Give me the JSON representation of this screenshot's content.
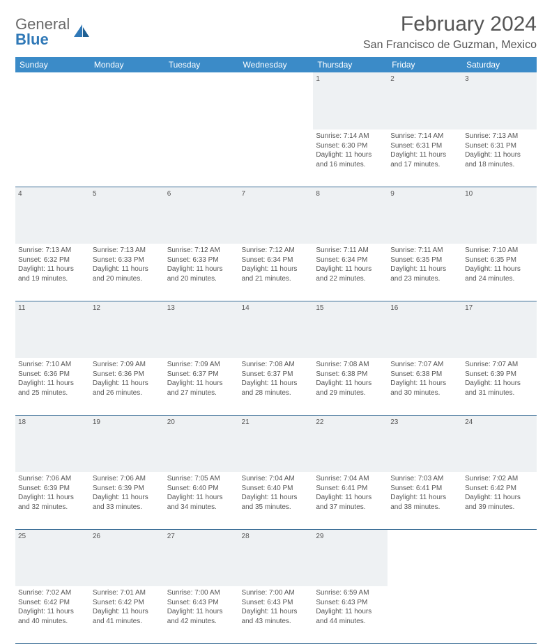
{
  "logo": {
    "word1": "General",
    "word2": "Blue"
  },
  "title": "February 2024",
  "location": "San Francisco de Guzman, Mexico",
  "colors": {
    "header_bg": "#3b8bc8",
    "header_text": "#ffffff",
    "daynum_bg": "#eef1f3",
    "border": "#3b6e96",
    "text": "#555555",
    "logo_gray": "#6a6a6a",
    "logo_blue": "#2f78b7",
    "page_bg": "#ffffff"
  },
  "weekdays": [
    "Sunday",
    "Monday",
    "Tuesday",
    "Wednesday",
    "Thursday",
    "Friday",
    "Saturday"
  ],
  "weeks": [
    {
      "nums": [
        "",
        "",
        "",
        "",
        "1",
        "2",
        "3"
      ],
      "cells": [
        null,
        null,
        null,
        null,
        {
          "sunrise": "7:14 AM",
          "sunset": "6:30 PM",
          "daylight": "11 hours and 16 minutes."
        },
        {
          "sunrise": "7:14 AM",
          "sunset": "6:31 PM",
          "daylight": "11 hours and 17 minutes."
        },
        {
          "sunrise": "7:13 AM",
          "sunset": "6:31 PM",
          "daylight": "11 hours and 18 minutes."
        }
      ]
    },
    {
      "nums": [
        "4",
        "5",
        "6",
        "7",
        "8",
        "9",
        "10"
      ],
      "cells": [
        {
          "sunrise": "7:13 AM",
          "sunset": "6:32 PM",
          "daylight": "11 hours and 19 minutes."
        },
        {
          "sunrise": "7:13 AM",
          "sunset": "6:33 PM",
          "daylight": "11 hours and 20 minutes."
        },
        {
          "sunrise": "7:12 AM",
          "sunset": "6:33 PM",
          "daylight": "11 hours and 20 minutes."
        },
        {
          "sunrise": "7:12 AM",
          "sunset": "6:34 PM",
          "daylight": "11 hours and 21 minutes."
        },
        {
          "sunrise": "7:11 AM",
          "sunset": "6:34 PM",
          "daylight": "11 hours and 22 minutes."
        },
        {
          "sunrise": "7:11 AM",
          "sunset": "6:35 PM",
          "daylight": "11 hours and 23 minutes."
        },
        {
          "sunrise": "7:10 AM",
          "sunset": "6:35 PM",
          "daylight": "11 hours and 24 minutes."
        }
      ]
    },
    {
      "nums": [
        "11",
        "12",
        "13",
        "14",
        "15",
        "16",
        "17"
      ],
      "cells": [
        {
          "sunrise": "7:10 AM",
          "sunset": "6:36 PM",
          "daylight": "11 hours and 25 minutes."
        },
        {
          "sunrise": "7:09 AM",
          "sunset": "6:36 PM",
          "daylight": "11 hours and 26 minutes."
        },
        {
          "sunrise": "7:09 AM",
          "sunset": "6:37 PM",
          "daylight": "11 hours and 27 minutes."
        },
        {
          "sunrise": "7:08 AM",
          "sunset": "6:37 PM",
          "daylight": "11 hours and 28 minutes."
        },
        {
          "sunrise": "7:08 AM",
          "sunset": "6:38 PM",
          "daylight": "11 hours and 29 minutes."
        },
        {
          "sunrise": "7:07 AM",
          "sunset": "6:38 PM",
          "daylight": "11 hours and 30 minutes."
        },
        {
          "sunrise": "7:07 AM",
          "sunset": "6:39 PM",
          "daylight": "11 hours and 31 minutes."
        }
      ]
    },
    {
      "nums": [
        "18",
        "19",
        "20",
        "21",
        "22",
        "23",
        "24"
      ],
      "cells": [
        {
          "sunrise": "7:06 AM",
          "sunset": "6:39 PM",
          "daylight": "11 hours and 32 minutes."
        },
        {
          "sunrise": "7:06 AM",
          "sunset": "6:39 PM",
          "daylight": "11 hours and 33 minutes."
        },
        {
          "sunrise": "7:05 AM",
          "sunset": "6:40 PM",
          "daylight": "11 hours and 34 minutes."
        },
        {
          "sunrise": "7:04 AM",
          "sunset": "6:40 PM",
          "daylight": "11 hours and 35 minutes."
        },
        {
          "sunrise": "7:04 AM",
          "sunset": "6:41 PM",
          "daylight": "11 hours and 37 minutes."
        },
        {
          "sunrise": "7:03 AM",
          "sunset": "6:41 PM",
          "daylight": "11 hours and 38 minutes."
        },
        {
          "sunrise": "7:02 AM",
          "sunset": "6:42 PM",
          "daylight": "11 hours and 39 minutes."
        }
      ]
    },
    {
      "nums": [
        "25",
        "26",
        "27",
        "28",
        "29",
        "",
        ""
      ],
      "cells": [
        {
          "sunrise": "7:02 AM",
          "sunset": "6:42 PM",
          "daylight": "11 hours and 40 minutes."
        },
        {
          "sunrise": "7:01 AM",
          "sunset": "6:42 PM",
          "daylight": "11 hours and 41 minutes."
        },
        {
          "sunrise": "7:00 AM",
          "sunset": "6:43 PM",
          "daylight": "11 hours and 42 minutes."
        },
        {
          "sunrise": "7:00 AM",
          "sunset": "6:43 PM",
          "daylight": "11 hours and 43 minutes."
        },
        {
          "sunrise": "6:59 AM",
          "sunset": "6:43 PM",
          "daylight": "11 hours and 44 minutes."
        },
        null,
        null
      ]
    }
  ],
  "labels": {
    "sunrise": "Sunrise:",
    "sunset": "Sunset:",
    "daylight": "Daylight:"
  }
}
